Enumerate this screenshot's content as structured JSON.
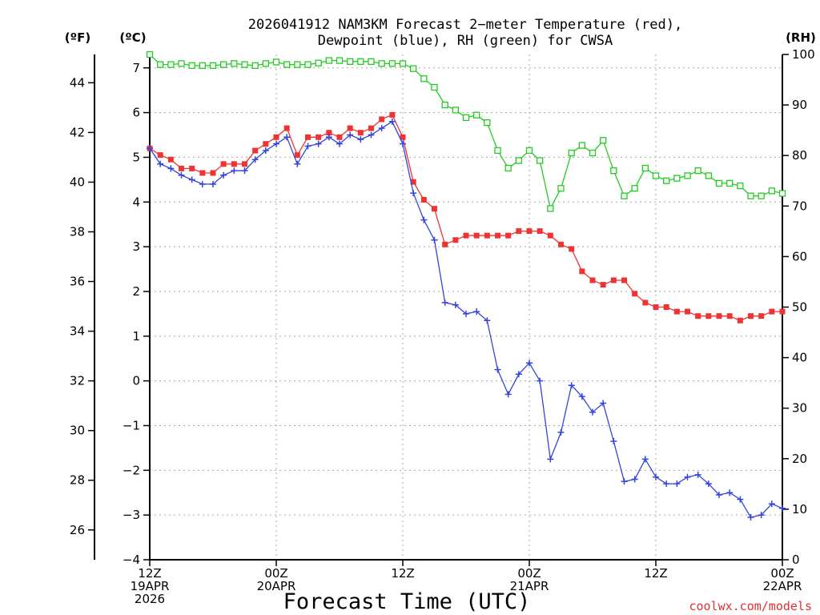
{
  "chart_data": {
    "type": "line",
    "title_lines": [
      "2026041912 NAM3KM Forecast 2−meter Temperature (red),",
      "Dewpoint (blue), RH (green) for CWSA"
    ],
    "xlabel": "Forecast Time (UTC)",
    "credit": "coolwx.com/models",
    "units": {
      "fahrenheit": "(ºF)",
      "celsius": "(ºC)",
      "rh": "(RH)"
    },
    "xlim": [
      0,
      60
    ],
    "x_ticks": [
      {
        "x": 0,
        "lines": [
          "12Z",
          "19APR",
          "2026"
        ]
      },
      {
        "x": 12,
        "lines": [
          "00Z",
          "20APR"
        ]
      },
      {
        "x": 24,
        "lines": [
          "12Z"
        ]
      },
      {
        "x": 36,
        "lines": [
          "00Z",
          "21APR"
        ]
      },
      {
        "x": 48,
        "lines": [
          "12Z"
        ]
      },
      {
        "x": 60,
        "lines": [
          "00Z",
          "22APR"
        ]
      }
    ],
    "celsius_axis": {
      "ylim": [
        -4,
        7.3
      ],
      "ticks": [
        "−4",
        "−3",
        "−2",
        "−1",
        "0",
        "1",
        "2",
        "3",
        "4",
        "5",
        "6",
        "7"
      ]
    },
    "fahrenheit_axis": {
      "ticks": [
        "26",
        "28",
        "30",
        "32",
        "34",
        "36",
        "38",
        "40",
        "42",
        "44"
      ]
    },
    "rh_axis": {
      "ylim": [
        0,
        100
      ],
      "ticks": [
        "0",
        "10",
        "20",
        "30",
        "40",
        "50",
        "60",
        "70",
        "80",
        "90",
        "100"
      ]
    },
    "series": [
      {
        "name": "Temperature",
        "unit": "C",
        "color": "#ee3333",
        "values": [
          5.2,
          5.05,
          4.95,
          4.75,
          4.75,
          4.65,
          4.65,
          4.85,
          4.85,
          4.85,
          5.15,
          5.3,
          5.45,
          5.65,
          5.05,
          5.45,
          5.45,
          5.55,
          5.45,
          5.65,
          5.55,
          5.65,
          5.85,
          5.95,
          5.45,
          4.45,
          4.05,
          3.85,
          3.05,
          3.15,
          3.25,
          3.25,
          3.25,
          3.25,
          3.25,
          3.35,
          3.35,
          3.35,
          3.25,
          3.05,
          2.95,
          2.45,
          2.25,
          2.15,
          2.25,
          2.25,
          1.95,
          1.75,
          1.65,
          1.65,
          1.55,
          1.55,
          1.45,
          1.45,
          1.45,
          1.45,
          1.35,
          1.45,
          1.45,
          1.55,
          1.55
        ]
      },
      {
        "name": "Dewpoint",
        "unit": "C",
        "color": "#3344dd",
        "values": [
          5.2,
          4.85,
          4.75,
          4.6,
          4.5,
          4.4,
          4.4,
          4.6,
          4.7,
          4.7,
          4.95,
          5.15,
          5.3,
          5.45,
          4.85,
          5.25,
          5.3,
          5.45,
          5.3,
          5.5,
          5.4,
          5.5,
          5.65,
          5.8,
          5.3,
          4.2,
          3.6,
          3.15,
          1.75,
          1.7,
          1.5,
          1.55,
          1.35,
          0.25,
          -0.3,
          0.15,
          0.4,
          0.0,
          -1.75,
          -1.15,
          -0.1,
          -0.35,
          -0.7,
          -0.5,
          -1.35,
          -2.25,
          -2.2,
          -1.75,
          -2.15,
          -2.3,
          -2.3,
          -2.15,
          -2.1,
          -2.3,
          -2.55,
          -2.5,
          -2.65,
          -3.05,
          -3.0,
          -2.75,
          -2.85
        ]
      },
      {
        "name": "RH",
        "unit": "%",
        "color": "#22cc22",
        "values": [
          100,
          98,
          98,
          98.2,
          97.8,
          97.8,
          97.8,
          98,
          98.2,
          98,
          97.8,
          98.2,
          98.5,
          98,
          98,
          98,
          98.3,
          98.8,
          98.8,
          98.6,
          98.6,
          98.6,
          98.2,
          98.2,
          98.2,
          97.2,
          95.2,
          93.5,
          90,
          89,
          87.5,
          88,
          86.5,
          81,
          77.5,
          79,
          81,
          79,
          69.5,
          73.5,
          80.5,
          82,
          80.5,
          83,
          77,
          72,
          73.5,
          77.5,
          76,
          75,
          75.5,
          76,
          77,
          76,
          74.5,
          74.5,
          74,
          72,
          72,
          73,
          72.5
        ]
      }
    ]
  }
}
